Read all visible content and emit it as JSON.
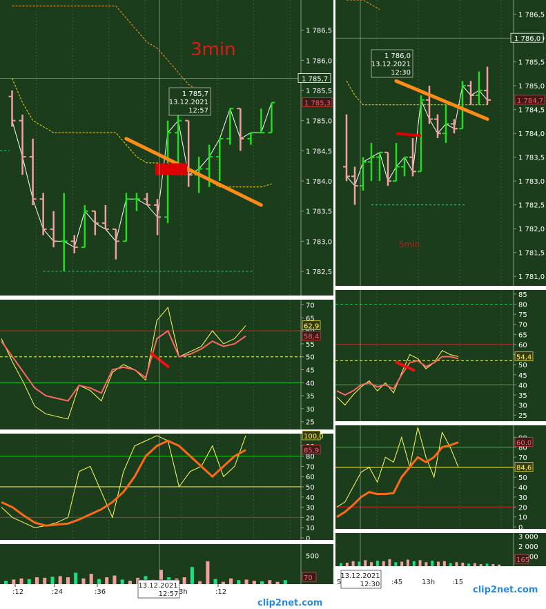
{
  "colors": {
    "background": "#1c3d1c",
    "grid": "#3d5c3d",
    "axis_text": "#ffffff",
    "bull_candle": "#22dd22",
    "bear_candle": "#f2a0a0",
    "close_line": "#ffffff",
    "upper_band": "#ffd700",
    "trend_line": "#ff8c1a",
    "marker": "#dd0000",
    "rsi_fast": "#ffff66",
    "rsi_slow": "#ff6666",
    "stoch_fast": "#ffff66",
    "stoch_slow": "#ff6a1a",
    "vol_up": "#22dd88",
    "vol_down": "#f2a0a0"
  },
  "chart_data": [
    {
      "id": "left-price",
      "type": "ohlc",
      "annotation": "3min",
      "yticks": [
        "1 786,5",
        "1 786,0",
        "1 785,5",
        "1 785,0",
        "1 784,5",
        "1 784,0",
        "1 783,5",
        "1 783,0",
        "1 782,5"
      ],
      "ylim": [
        1782.1,
        1787.0
      ],
      "last_price_label": "1 785,7",
      "current_price_label": "1 785,3",
      "tooltip": {
        "price": "1 785,7",
        "date": "13.12.2021",
        "time": "12:57"
      },
      "bars": [
        {
          "o": 1785.4,
          "h": 1785.5,
          "l": 1784.9,
          "c": 1785.0
        },
        {
          "o": 1785.0,
          "h": 1785.1,
          "l": 1784.1,
          "c": 1784.4
        },
        {
          "o": 1784.4,
          "h": 1784.7,
          "l": 1783.6,
          "c": 1783.7
        },
        {
          "o": 1783.7,
          "h": 1783.8,
          "l": 1783.1,
          "c": 1783.2
        },
        {
          "o": 1783.2,
          "h": 1783.5,
          "l": 1782.9,
          "c": 1783.0
        },
        {
          "o": 1783.0,
          "h": 1783.8,
          "l": 1782.5,
          "c": 1783.0
        },
        {
          "o": 1783.0,
          "h": 1783.1,
          "l": 1782.8,
          "c": 1782.9
        },
        {
          "o": 1782.9,
          "h": 1783.6,
          "l": 1782.9,
          "c": 1783.5
        },
        {
          "o": 1783.5,
          "h": 1783.5,
          "l": 1783.1,
          "c": 1783.3
        },
        {
          "o": 1783.3,
          "h": 1783.6,
          "l": 1783.2,
          "c": 1783.2
        },
        {
          "o": 1783.2,
          "h": 1783.2,
          "l": 1782.7,
          "c": 1783.0
        },
        {
          "o": 1783.0,
          "h": 1783.8,
          "l": 1783.0,
          "c": 1783.7
        },
        {
          "o": 1783.7,
          "h": 1783.8,
          "l": 1783.5,
          "c": 1783.7
        },
        {
          "o": 1783.7,
          "h": 1783.8,
          "l": 1783.6,
          "c": 1783.6
        },
        {
          "o": 1783.6,
          "h": 1783.7,
          "l": 1783.1,
          "c": 1783.4
        },
        {
          "o": 1783.4,
          "h": 1785.0,
          "l": 1783.3,
          "c": 1784.8
        },
        {
          "o": 1784.8,
          "h": 1785.2,
          "l": 1784.1,
          "c": 1785.0
        },
        {
          "o": 1785.0,
          "h": 1785.0,
          "l": 1783.9,
          "c": 1784.1
        },
        {
          "o": 1784.1,
          "h": 1784.4,
          "l": 1783.8,
          "c": 1784.2
        },
        {
          "o": 1784.2,
          "h": 1784.6,
          "l": 1783.9,
          "c": 1784.4
        },
        {
          "o": 1784.4,
          "h": 1784.7,
          "l": 1784.0,
          "c": 1784.7
        },
        {
          "o": 1784.7,
          "h": 1785.2,
          "l": 1784.6,
          "c": 1785.2
        },
        {
          "o": 1785.2,
          "h": 1785.2,
          "l": 1784.5,
          "c": 1784.7
        },
        {
          "o": 1784.7,
          "h": 1784.8,
          "l": 1784.6,
          "c": 1784.8
        },
        {
          "o": 1784.8,
          "h": 1785.2,
          "l": 1784.8,
          "c": 1784.8
        },
        {
          "o": 1784.8,
          "h": 1785.3,
          "l": 1784.8,
          "c": 1785.3
        }
      ],
      "upper_band": [
        1785.7,
        1785.3,
        1785.0,
        1784.9,
        1784.8,
        1784.8,
        1784.8,
        1784.8,
        1784.8,
        1784.8,
        1784.8,
        1784.6,
        1784.4,
        1784.3,
        1784.3,
        1784.2,
        1784.1,
        1784.1,
        1784.1,
        1784.0,
        1783.9,
        1783.9,
        1783.9,
        1783.9,
        1783.9,
        1783.95
      ],
      "upper_band2": [
        1786.9,
        1786.9,
        1786.9,
        1786.9,
        1786.9,
        1786.9,
        1786.9,
        1786.9,
        1786.9,
        1786.9,
        1786.9,
        1786.7,
        1786.5,
        1786.3,
        1786.2,
        1786.0,
        1785.8,
        1785.6,
        1785.5
      ],
      "support_level": 1782.5,
      "support2_level": 1784.5,
      "trend_from": [
        1784.7,
        11
      ],
      "trend_to": [
        1783.6,
        24
      ],
      "xticks": [
        ":12",
        ":24",
        ":36",
        "",
        ":12"
      ]
    },
    {
      "id": "left-rsi",
      "type": "line",
      "yticks": [
        "70",
        "65",
        "60",
        "55",
        "50",
        "45",
        "40",
        "35",
        "30",
        "25"
      ],
      "ylim": [
        22,
        72
      ],
      "last_fast_label": "62,9",
      "last_slow_label": "58,4",
      "levels": [
        60,
        50,
        40
      ],
      "fast": [
        57,
        48,
        40,
        31,
        28,
        27,
        26,
        39,
        37,
        33,
        44,
        47,
        45,
        41,
        64,
        69,
        50,
        52,
        54,
        60,
        55,
        57,
        62
      ],
      "slow": [
        56,
        50,
        44,
        38,
        35,
        34,
        33,
        39,
        38,
        36,
        45,
        46,
        45,
        42,
        57,
        60,
        50,
        51,
        53,
        56,
        54,
        55,
        58
      ]
    },
    {
      "id": "left-stoch",
      "type": "line",
      "yticks": [
        "100",
        "90",
        "80",
        "70",
        "60",
        "50",
        "40",
        "30",
        "20",
        "10",
        "0"
      ],
      "ylim": [
        -2,
        102
      ],
      "last_fast_label": "100,0",
      "last_slow_label": "85,9",
      "levels": [
        80,
        50,
        20
      ],
      "fast": [
        30,
        20,
        15,
        10,
        12,
        15,
        20,
        65,
        70,
        45,
        20,
        65,
        90,
        95,
        100,
        95,
        50,
        65,
        70,
        90,
        60,
        70,
        100
      ],
      "slow": [
        35,
        30,
        22,
        15,
        12,
        13,
        14,
        18,
        23,
        28,
        35,
        45,
        60,
        80,
        90,
        95,
        90,
        80,
        70,
        60,
        70,
        80,
        86
      ]
    },
    {
      "id": "left-volume",
      "type": "bar",
      "yticks": [
        "500"
      ],
      "ylim": [
        0,
        700
      ],
      "last_label": "70",
      "values": [
        60,
        80,
        100,
        90,
        120,
        110,
        130,
        140,
        120,
        200,
        100,
        180,
        90,
        120,
        150,
        80,
        60,
        110,
        140,
        80,
        250,
        120,
        100,
        120,
        300,
        50,
        400,
        90,
        40,
        100,
        70,
        80,
        60,
        50,
        70,
        40,
        70
      ]
    },
    {
      "id": "right-price",
      "type": "ohlc",
      "annotation": "5min",
      "yticks": [
        "1 786,5",
        "1 786,0",
        "1 785,5",
        "1 785,0",
        "1 784,5",
        "1 784,0",
        "1 783,5",
        "1 783,0",
        "1 782,5",
        "1 782,0",
        "1 781,5",
        "1 781,0"
      ],
      "ylim": [
        1780.8,
        1786.8
      ],
      "last_price_label": "1 786,0",
      "current_price_label": "1 784,7",
      "tooltip": {
        "price": "1 786,0",
        "date": "13.12.2021",
        "time": "12:30"
      },
      "bars": [
        {
          "o": 1783.3,
          "h": 1784.4,
          "l": 1783.0,
          "c": 1783.1
        },
        {
          "o": 1783.1,
          "h": 1783.3,
          "l": 1782.5,
          "c": 1782.9
        },
        {
          "o": 1782.9,
          "h": 1783.5,
          "l": 1782.8,
          "c": 1783.4
        },
        {
          "o": 1783.4,
          "h": 1783.8,
          "l": 1783.0,
          "c": 1783.5
        },
        {
          "o": 1783.5,
          "h": 1783.6,
          "l": 1783.0,
          "c": 1783.6
        },
        {
          "o": 1783.6,
          "h": 1783.6,
          "l": 1782.9,
          "c": 1783.0
        },
        {
          "o": 1783.0,
          "h": 1783.8,
          "l": 1783.0,
          "c": 1783.3
        },
        {
          "o": 1783.3,
          "h": 1783.5,
          "l": 1783.1,
          "c": 1783.5
        },
        {
          "o": 1783.5,
          "h": 1783.9,
          "l": 1783.1,
          "c": 1783.2
        },
        {
          "o": 1783.2,
          "h": 1784.8,
          "l": 1783.2,
          "c": 1784.7
        },
        {
          "o": 1784.7,
          "h": 1785.0,
          "l": 1784.2,
          "c": 1784.3
        },
        {
          "o": 1784.3,
          "h": 1784.4,
          "l": 1783.9,
          "c": 1784.0
        },
        {
          "o": 1784.0,
          "h": 1784.6,
          "l": 1783.8,
          "c": 1784.2
        },
        {
          "o": 1784.2,
          "h": 1784.3,
          "l": 1784.0,
          "c": 1784.1
        },
        {
          "o": 1784.1,
          "h": 1785.1,
          "l": 1784.1,
          "c": 1785.0
        },
        {
          "o": 1785.0,
          "h": 1785.1,
          "l": 1784.6,
          "c": 1784.8
        },
        {
          "o": 1784.8,
          "h": 1785.3,
          "l": 1784.6,
          "c": 1784.9
        },
        {
          "o": 1784.9,
          "h": 1785.4,
          "l": 1784.6,
          "c": 1784.7
        }
      ],
      "upper_band": [
        1785.1,
        1784.8,
        1784.6,
        1784.6,
        1784.6,
        1784.6,
        1784.6,
        1784.6,
        1784.6,
        1784.6,
        1784.6,
        1784.6,
        1784.6,
        1784.6,
        1784.6,
        1784.6,
        1784.6,
        1784.6
      ],
      "upper_band2": [
        1786.8,
        1786.8,
        1786.8,
        1786.7,
        1786.6
      ],
      "support_level": 1782.5,
      "trend_from": [
        1785.1,
        6
      ],
      "trend_to": [
        1784.3,
        17
      ],
      "xticks": [
        "5",
        ":45",
        "13h",
        ":15"
      ]
    },
    {
      "id": "right-rsi",
      "type": "line",
      "yticks": [
        "85",
        "80",
        "75",
        "70",
        "65",
        "60",
        "55",
        "50",
        "45",
        "40",
        "35",
        "30",
        "25"
      ],
      "ylim": [
        22,
        87
      ],
      "last_fast_label": "54,4",
      "last_slow_label": "",
      "levels": [
        80,
        60,
        52,
        40
      ],
      "fast": [
        34,
        30,
        35,
        39,
        42,
        37,
        41,
        36,
        46,
        55,
        53,
        48,
        51,
        57,
        55,
        54
      ],
      "slow": [
        37,
        35,
        37,
        40,
        41,
        39,
        40,
        38,
        45,
        51,
        52,
        49,
        51,
        54,
        54,
        53
      ]
    },
    {
      "id": "right-stoch",
      "type": "line",
      "yticks": [
        "100",
        "90",
        "80",
        "70",
        "60",
        "50",
        "40",
        "30",
        "20",
        "10",
        "0"
      ],
      "ylim": [
        -2,
        102
      ],
      "last_fast_label": "84,6",
      "last_slow_label": "60,0",
      "levels": [
        80,
        60,
        20
      ],
      "fast": [
        20,
        25,
        40,
        55,
        60,
        45,
        70,
        65,
        90,
        60,
        100,
        70,
        50,
        95,
        80,
        60
      ],
      "slow": [
        10,
        15,
        22,
        30,
        35,
        33,
        33,
        34,
        50,
        60,
        70,
        65,
        70,
        80,
        82,
        85
      ]
    },
    {
      "id": "right-volume",
      "type": "bar",
      "yticks": [
        "3 000",
        "2 000",
        "1 000"
      ],
      "ylim": [
        0,
        3300
      ],
      "last_label": "165",
      "values": [
        300,
        350,
        500,
        450,
        600,
        400,
        550,
        500,
        700,
        400,
        450,
        650,
        500,
        600,
        400,
        550,
        450,
        500,
        300,
        400,
        350,
        250,
        300,
        200,
        250,
        200,
        165
      ]
    }
  ],
  "labels": {
    "left_xaxis_tooltip_date": "13.12.2021",
    "left_xaxis_tooltip_time": "12:57",
    "left_xaxis_hour": "3h",
    "right_xaxis_tooltip_date": "13.12.2021",
    "right_xaxis_tooltip_time": "12:30",
    "watermark": "clip2net.com"
  }
}
